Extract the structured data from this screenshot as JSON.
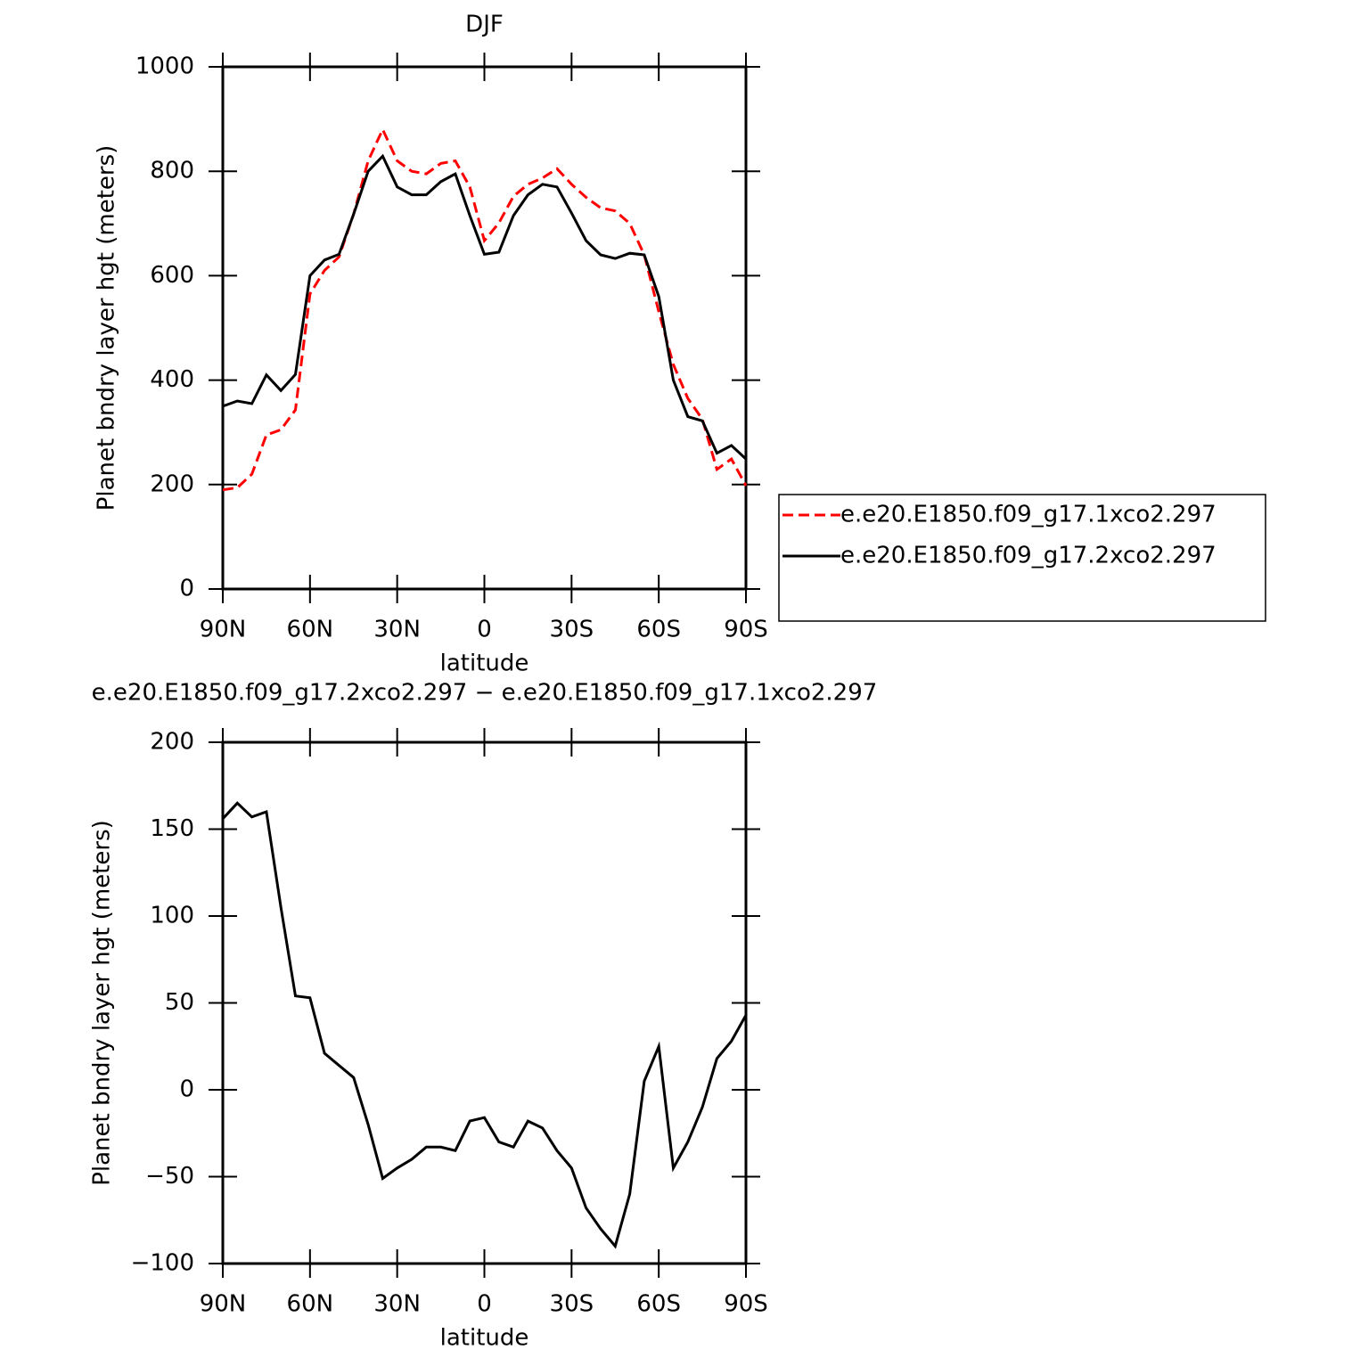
{
  "chart_data": [
    {
      "type": "line",
      "title": "DJF",
      "xlabel": "latitude",
      "ylabel": "Planet bndry layer hgt (meters)",
      "x": [
        90,
        85,
        80,
        75,
        70,
        65,
        60,
        55,
        50,
        45,
        40,
        35,
        30,
        25,
        20,
        15,
        10,
        5,
        0,
        -5,
        -10,
        -15,
        -20,
        -25,
        -30,
        -35,
        -40,
        -45,
        -50,
        -55,
        -60,
        -65,
        -70,
        -75,
        -80,
        -85,
        -90
      ],
      "series": [
        {
          "name": "e.e20.E1850.f09_g17.1xco2.297",
          "color": "#ff0000",
          "dashed": true,
          "values": [
            190,
            194,
            220,
            295,
            305,
            343,
            565,
            610,
            636,
            718,
            820,
            880,
            820,
            800,
            795,
            815,
            820,
            770,
            667,
            701,
            752,
            775,
            787,
            805,
            775,
            750,
            730,
            724,
            700,
            640,
            531,
            430,
            365,
            325,
            229,
            249,
            198
          ]
        },
        {
          "name": "e.e20.E1850.f09_g17.2xco2.297",
          "color": "#000000",
          "dashed": false,
          "values": [
            350,
            360,
            355,
            410,
            380,
            411,
            600,
            630,
            641,
            718,
            800,
            829,
            770,
            755,
            755,
            780,
            795,
            715,
            641,
            645,
            715,
            755,
            775,
            770,
            720,
            667,
            640,
            633,
            643,
            640,
            560,
            400,
            330,
            322,
            260,
            275,
            249
          ]
        }
      ],
      "xlim": [
        90,
        -90
      ],
      "xticks": [
        {
          "value": 90,
          "label": "90N"
        },
        {
          "value": 60,
          "label": "60N"
        },
        {
          "value": 30,
          "label": "30N"
        },
        0,
        {
          "value": -30,
          "label": "30S"
        },
        {
          "value": -60,
          "label": "60S"
        },
        {
          "value": -90,
          "label": "90S"
        }
      ],
      "ylim": [
        0,
        1000
      ],
      "yticks": [
        0,
        200,
        400,
        600,
        800,
        1000
      ],
      "legend": "right"
    },
    {
      "type": "line",
      "title": "e.e20.E1850.f09_g17.2xco2.297 − e.e20.E1850.f09_g17.1xco2.297",
      "xlabel": "latitude",
      "ylabel": "Planet bndry layer hgt (meters)",
      "x": [
        90,
        85,
        80,
        75,
        70,
        65,
        60,
        55,
        50,
        45,
        40,
        35,
        30,
        25,
        20,
        15,
        10,
        5,
        0,
        -5,
        -10,
        -15,
        -20,
        -25,
        -30,
        -35,
        -40,
        -45,
        -50,
        -55,
        -60,
        -65,
        -70,
        -75,
        -80,
        -85,
        -90
      ],
      "series": [
        {
          "color": "#000000",
          "dashed": false,
          "values": [
            156,
            165,
            157,
            160,
            105,
            54,
            53,
            21,
            14,
            7,
            -20,
            -51,
            -45,
            -40,
            -33,
            -33,
            -35,
            -18,
            -16,
            -30,
            -33,
            -18,
            -22,
            -35,
            -45,
            -68,
            -80,
            -90,
            -60,
            5,
            25,
            -45,
            -30,
            -10,
            18,
            28,
            43
          ]
        }
      ],
      "xlim": [
        90,
        -90
      ],
      "xticks": [
        {
          "value": 90,
          "label": "90N"
        },
        {
          "value": 60,
          "label": "60N"
        },
        {
          "value": 30,
          "label": "30N"
        },
        0,
        {
          "value": -30,
          "label": "30S"
        },
        {
          "value": -60,
          "label": "60S"
        },
        {
          "value": -90,
          "label": "90S"
        }
      ],
      "ylim": [
        -100,
        200
      ],
      "yticks": [
        {
          "value": -100,
          "label": "−100"
        },
        {
          "value": -50,
          "label": "−50"
        },
        0,
        50,
        100,
        150,
        200
      ]
    }
  ]
}
